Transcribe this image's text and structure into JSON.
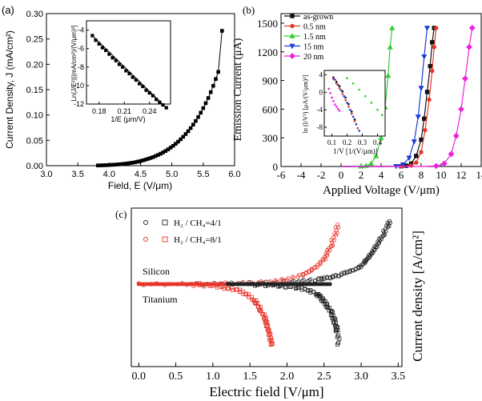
{
  "chart_data": [
    {
      "panel": "(a)",
      "type": "scatter",
      "xlabel": "Field, E (V/μm)",
      "ylabel": "Current Density, J (mA/cm²)",
      "xlim": [
        3.0,
        6.0
      ],
      "ylim": [
        0.0,
        0.3
      ],
      "xticks": [
        "3.0",
        "3.5",
        "4.0",
        "4.5",
        "5.0",
        "5.5",
        "6.0"
      ],
      "yticks": [
        "0.00",
        "0.05",
        "0.10",
        "0.15",
        "0.20",
        "0.25",
        "0.30"
      ],
      "x": [
        3.82,
        3.86,
        3.9,
        3.94,
        3.98,
        4.02,
        4.06,
        4.1,
        4.14,
        4.18,
        4.22,
        4.26,
        4.3,
        4.34,
        4.38,
        4.42,
        4.46,
        4.5,
        4.54,
        4.58,
        4.62,
        4.66,
        4.7,
        4.74,
        4.78,
        4.82,
        4.86,
        4.9,
        4.94,
        4.98,
        5.02,
        5.06,
        5.1,
        5.14,
        5.18,
        5.22,
        5.26,
        5.3,
        5.34,
        5.38,
        5.42,
        5.46,
        5.5,
        5.54,
        5.58,
        5.62,
        5.66,
        5.7,
        5.74,
        5.8
      ],
      "y": [
        0.0005,
        0.0006,
        0.0008,
        0.001,
        0.0012,
        0.0015,
        0.0018,
        0.0021,
        0.0025,
        0.0029,
        0.0034,
        0.004,
        0.0046,
        0.0053,
        0.006,
        0.007,
        0.008,
        0.0092,
        0.0105,
        0.012,
        0.0135,
        0.0152,
        0.017,
        0.019,
        0.0212,
        0.0236,
        0.0262,
        0.029,
        0.0322,
        0.0356,
        0.0392,
        0.0432,
        0.0474,
        0.052,
        0.057,
        0.0624,
        0.068,
        0.0742,
        0.081,
        0.0882,
        0.096,
        0.1045,
        0.1135,
        0.1232,
        0.1335,
        0.145,
        0.1575,
        0.171,
        0.185,
        0.266
      ],
      "inset": {
        "xlabel": "1/E (μm/V)",
        "ylabel": "Ln(J/E²)[(mA/cm²)/(V/μm)²]",
        "xlim": [
          0.165,
          0.265
        ],
        "ylim": [
          -12,
          -3
        ],
        "xticks": [
          "0.18",
          "0.21",
          "0.24"
        ],
        "yticks": [
          "-4",
          "-6",
          "-8",
          "-10",
          "-12"
        ],
        "x": [
          0.172,
          0.176,
          0.18,
          0.184,
          0.188,
          0.192,
          0.196,
          0.2,
          0.204,
          0.208,
          0.212,
          0.216,
          0.22,
          0.224,
          0.228,
          0.232,
          0.236,
          0.24,
          0.244,
          0.248,
          0.252,
          0.256,
          0.26
        ],
        "y": [
          -4.6,
          -5.1,
          -5.5,
          -5.9,
          -6.2,
          -6.6,
          -7.0,
          -7.3,
          -7.7,
          -8.0,
          -8.4,
          -8.7,
          -9.1,
          -9.4,
          -9.8,
          -10.1,
          -10.5,
          -10.8,
          -11.1,
          -11.5,
          -11.8,
          -12.1,
          -12.4
        ]
      }
    },
    {
      "panel": "(b)",
      "type": "line",
      "xlabel": "Applied Voltage (V/μm)",
      "ylabel": "Emission Current (μA)",
      "xlim": [
        -6,
        14
      ],
      "ylim": [
        0,
        1600
      ],
      "xticks": [
        "-6",
        "-4",
        "-2",
        "0",
        "2",
        "4",
        "6",
        "8",
        "10",
        "12",
        "14"
      ],
      "yticks": [
        "0",
        "300",
        "600",
        "900",
        "1200",
        "1500"
      ],
      "legend_position": "top-left",
      "series": [
        {
          "name": "as-grown",
          "color": "#111111",
          "marker": "square",
          "x": [
            0,
            2,
            4,
            6,
            6.5,
            7,
            7.5,
            8,
            8.3,
            8.6,
            8.9,
            9.1,
            9.3
          ],
          "y": [
            0,
            0,
            0,
            2,
            8,
            30,
            110,
            280,
            500,
            780,
            1050,
            1300,
            1450
          ]
        },
        {
          "name": "0.5 nm",
          "color": "#e8352b",
          "marker": "circle",
          "x": [
            0,
            2,
            4,
            6,
            7,
            7.5,
            8,
            8.4,
            8.8,
            9.1,
            9.3,
            9.5
          ],
          "y": [
            0,
            0,
            0,
            1,
            10,
            40,
            150,
            380,
            700,
            1000,
            1250,
            1450
          ]
        },
        {
          "name": "1.5 nm",
          "color": "#33cc33",
          "marker": "triangle-up",
          "x": [
            0,
            1,
            2,
            2.5,
            3,
            3.5,
            4,
            4.4,
            4.7,
            4.9,
            5.1
          ],
          "y": [
            0,
            0,
            2,
            8,
            30,
            110,
            300,
            620,
            950,
            1250,
            1450
          ]
        },
        {
          "name": "15 nm",
          "color": "#1a3cd6",
          "marker": "triangle-down",
          "x": [
            0,
            2,
            4,
            5.5,
            6.2,
            6.8,
            7.3,
            7.7,
            8.0,
            8.3,
            8.6
          ],
          "y": [
            0,
            0,
            0,
            3,
            20,
            90,
            260,
            520,
            820,
            1150,
            1450
          ]
        },
        {
          "name": "20 nm",
          "color": "#ee22dd",
          "marker": "diamond",
          "x": [
            0,
            4,
            8,
            9.5,
            10.3,
            11.0,
            11.5,
            12.0,
            12.4,
            12.8,
            13.1
          ],
          "y": [
            0,
            0,
            0,
            5,
            30,
            130,
            320,
            600,
            920,
            1250,
            1450
          ]
        }
      ],
      "inset": {
        "xlabel": "1/V [1/(V/μm)]",
        "ylabel": "ln (I/V²) [μA/(V/μm)²]",
        "xlim": [
          0.05,
          0.45
        ],
        "ylim": [
          -10,
          5
        ],
        "xticks": [
          "0.1",
          "0.2",
          "0.3",
          "0.4"
        ],
        "yticks": [
          "4",
          "0",
          "-4",
          "-8"
        ],
        "series": [
          {
            "name": "as-grown",
            "color": "#111111",
            "x": [
              0.11,
              0.13,
              0.15,
              0.17,
              0.19,
              0.21,
              0.23,
              0.25
            ],
            "y": [
              3.4,
              2.4,
              1.4,
              0.2,
              -1.2,
              -2.7,
              -4.4,
              -6.2
            ]
          },
          {
            "name": "0.5 nm",
            "color": "#e8352b",
            "x": [
              0.11,
              0.13,
              0.15,
              0.17,
              0.19,
              0.21,
              0.23,
              0.25,
              0.27
            ],
            "y": [
              3.0,
              2.0,
              0.9,
              -0.4,
              -1.8,
              -3.3,
              -4.9,
              -6.6,
              -8.2
            ]
          },
          {
            "name": "1.5 nm",
            "color": "#33cc33",
            "x": [
              0.2,
              0.24,
              0.28,
              0.32,
              0.36,
              0.4,
              0.43
            ],
            "y": [
              3.2,
              2.0,
              0.6,
              -0.9,
              -2.4,
              -4.0,
              -5.2
            ]
          },
          {
            "name": "15 nm",
            "color": "#1a3cd6",
            "x": [
              0.12,
              0.14,
              0.16,
              0.18,
              0.2,
              0.22,
              0.24,
              0.26,
              0.28
            ],
            "y": [
              2.9,
              1.7,
              0.5,
              -0.9,
              -2.4,
              -4.0,
              -5.6,
              -7.3,
              -8.8
            ]
          },
          {
            "name": "20 nm",
            "color": "#ee22dd",
            "x": [
              0.08,
              0.09,
              0.1,
              0.11,
              0.12,
              0.13,
              0.14,
              0.15
            ],
            "y": [
              0.8,
              -0.2,
              -1.2,
              -2.0,
              -2.8,
              -3.3,
              -3.8,
              -4.2
            ]
          }
        ]
      }
    },
    {
      "panel": "(c)",
      "type": "scatter",
      "xlabel": "Electric field [V/μm]",
      "ylabel": "Current density [A/cm²]",
      "xlim": [
        -0.1,
        3.55
      ],
      "ylim": [
        -1,
        1
      ],
      "xticks": [
        "0.0",
        "0.5",
        "1.0",
        "1.5",
        "2.0",
        "2.5",
        "3.0",
        "3.5"
      ],
      "annotations": [
        "Silicon",
        "Titanium"
      ],
      "legend": [
        {
          "label": "H₂ / CH₄=4/1",
          "color": "#222222"
        },
        {
          "label": "H₂ / CH₄=8/1",
          "color": "#e8352b"
        }
      ],
      "series": [
        {
          "name": "H₂ / CH₄=4/1 (Silicon)",
          "color": "#222222",
          "x": [
            0.8,
            1.2,
            1.6,
            2.0,
            2.2,
            2.4,
            2.5,
            2.6,
            2.7,
            2.8,
            2.9,
            3.0,
            3.05,
            3.1,
            3.15,
            3.2,
            3.25,
            3.3,
            3.35,
            3.4
          ],
          "y": [
            0.0,
            0.01,
            0.02,
            0.03,
            0.05,
            0.07,
            0.09,
            0.11,
            0.14,
            0.18,
            0.22,
            0.28,
            0.35,
            0.42,
            0.5,
            0.58,
            0.68,
            0.78,
            0.9,
            1.0
          ]
        },
        {
          "name": "H₂ / CH₄=4/1 (Titanium)",
          "color": "#222222",
          "x": [
            1.5,
            1.8,
            2.0,
            2.2,
            2.3,
            2.4,
            2.45,
            2.5,
            2.55,
            2.6,
            2.63,
            2.66,
            2.68,
            2.7
          ],
          "y": [
            -0.01,
            -0.02,
            -0.04,
            -0.07,
            -0.1,
            -0.15,
            -0.2,
            -0.27,
            -0.35,
            -0.45,
            -0.55,
            -0.65,
            -0.75,
            -0.98
          ]
        },
        {
          "name": "H₂ / CH₄=8/1 (Silicon)",
          "color": "#e8352b",
          "x": [
            0.0,
            0.5,
            1.0,
            1.5,
            1.8,
            2.0,
            2.2,
            2.3,
            2.4,
            2.5,
            2.55,
            2.6,
            2.65,
            2.7
          ],
          "y": [
            0.0,
            0.0,
            0.01,
            0.02,
            0.04,
            0.08,
            0.14,
            0.2,
            0.28,
            0.38,
            0.5,
            0.62,
            0.78,
            0.96
          ]
        },
        {
          "name": "H₂ / CH₄=8/1 (Titanium)",
          "color": "#e8352b",
          "x": [
            0.7,
            1.0,
            1.2,
            1.35,
            1.45,
            1.55,
            1.6,
            1.65,
            1.7,
            1.72,
            1.75,
            1.78,
            1.8
          ],
          "y": [
            -0.01,
            -0.03,
            -0.06,
            -0.1,
            -0.16,
            -0.24,
            -0.32,
            -0.42,
            -0.52,
            -0.62,
            -0.72,
            -0.85,
            -0.98
          ]
        }
      ]
    }
  ]
}
